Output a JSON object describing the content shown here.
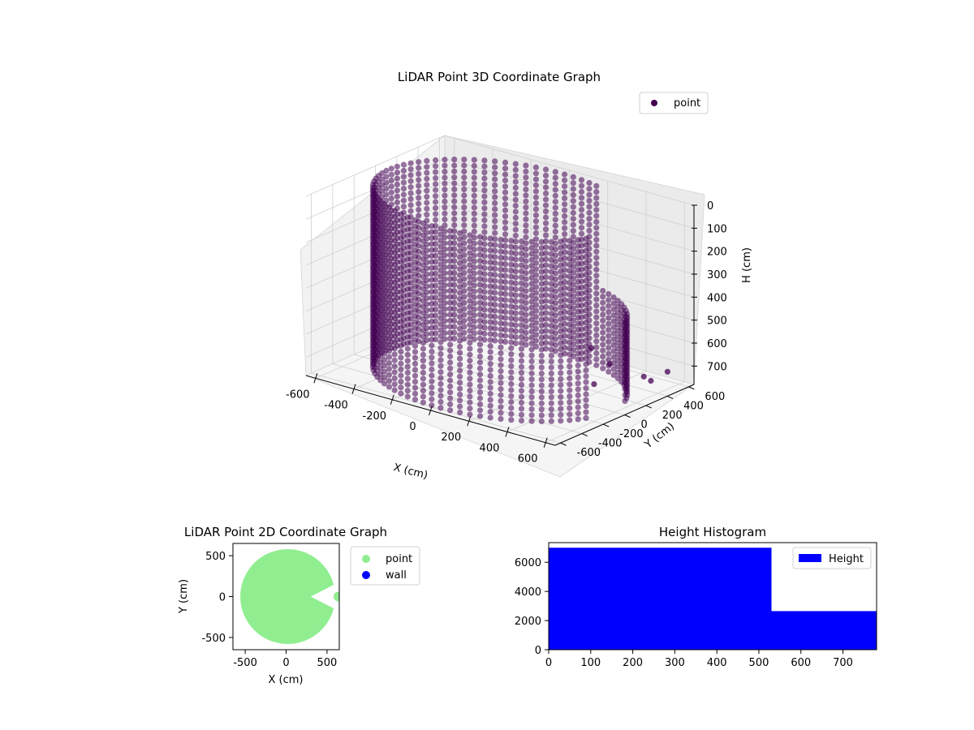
{
  "chart_data": [
    {
      "type": "scatter",
      "projection": "3d",
      "title": "LiDAR Point 3D Coordinate Graph",
      "xlabel": "X (cm)",
      "ylabel": "Y (cm)",
      "zlabel": "H (cm)",
      "x_ticks": [
        "-600",
        "-400",
        "-200",
        "0",
        "200",
        "400",
        "600"
      ],
      "y_ticks": [
        "-600",
        "-400",
        "-200",
        "0",
        "200",
        "400",
        "600"
      ],
      "z_ticks": [
        "0",
        "100",
        "200",
        "300",
        "400",
        "500",
        "600",
        "700"
      ],
      "xlim": [
        -650,
        650
      ],
      "ylim": [
        -650,
        650
      ],
      "zlim": [
        0,
        780
      ],
      "z_inverted": true,
      "legend": {
        "position": "top-right",
        "entries": [
          {
            "name": "point",
            "color": "#440154"
          }
        ]
      },
      "series": [
        {
          "name": "point",
          "color": "#440154",
          "shape": "cylindrical wall of radius ~580 cm with an opening toward +X, heights 0–780 cm",
          "points": [
            {
              "x": 620,
              "y": 300,
              "h": 700
            },
            {
              "x": 650,
              "y": 180,
              "h": 650
            },
            {
              "x": 640,
              "y": 420,
              "h": 680
            },
            {
              "x": 600,
              "y": -50,
              "h": 560
            },
            {
              "x": 630,
              "y": -250,
              "h": 600
            },
            {
              "x": 560,
              "y": -150,
              "h": 480
            }
          ]
        }
      ],
      "grid": true
    },
    {
      "type": "scatter",
      "title": "LiDAR Point 2D Coordinate Graph",
      "xlabel": "X (cm)",
      "ylabel": "Y (cm)",
      "x_ticks": [
        "-500",
        "0",
        "500"
      ],
      "y_ticks": [
        "-500",
        "0",
        "500"
      ],
      "xlim": [
        -650,
        650
      ],
      "ylim": [
        -650,
        650
      ],
      "legend": {
        "position": "outside-right",
        "entries": [
          {
            "name": "point",
            "color": "#90ee90"
          },
          {
            "name": "wall",
            "color": "#0000ff"
          }
        ]
      },
      "series": [
        {
          "name": "point",
          "color": "#90ee90",
          "shape": "filled disc of radius ~580 cm centred at origin with a wedge opening toward +X"
        },
        {
          "name": "wall",
          "color": "#0000ff",
          "points": []
        }
      ]
    },
    {
      "type": "bar",
      "subtype": "histogram",
      "title": "Height Histogram",
      "x_ticks": [
        "0",
        "100",
        "200",
        "300",
        "400",
        "500",
        "600",
        "700"
      ],
      "y_ticks": [
        "0",
        "2000",
        "4000",
        "6000"
      ],
      "xlim": [
        0,
        780
      ],
      "ylim": [
        0,
        7350
      ],
      "legend": {
        "position": "top-right",
        "entries": [
          {
            "name": "Height",
            "color": "#0000ff"
          }
        ]
      },
      "bins": [
        {
          "start": 0,
          "end": 530,
          "count": 7000
        },
        {
          "start": 530,
          "end": 780,
          "count": 2650
        }
      ],
      "color": "#0000ff"
    }
  ]
}
